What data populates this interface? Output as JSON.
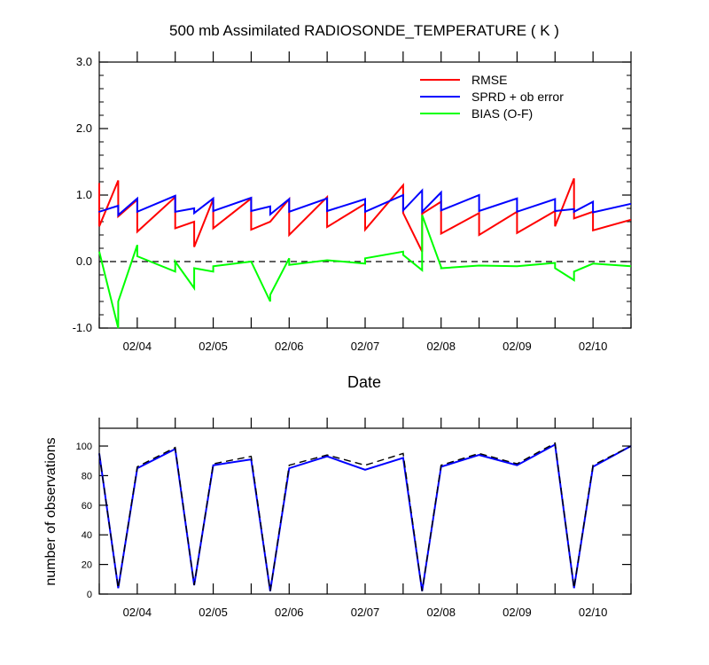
{
  "chart_data": [
    {
      "type": "line",
      "title": "500 mb Assimilated RADIOSONDE_TEMPERATURE ( K )",
      "xlabel": "Date",
      "ylabel": "",
      "ylim": [
        -1.0,
        3.0
      ],
      "y_ticks": [
        "-1.0",
        "0.0",
        "1.0",
        "2.0",
        "3.0"
      ],
      "x_ticks": [
        "02/04",
        "02/05",
        "02/06",
        "02/07",
        "02/08",
        "02/09",
        "02/10"
      ],
      "xlim": [
        3.5,
        10.5
      ],
      "zero_line": true,
      "legend_position": "top-right",
      "series": [
        {
          "name": "RMSE",
          "color": "#ff0000",
          "x": [
            3.5,
            3.5,
            3.75,
            3.75,
            4.0,
            4.0,
            4.5,
            4.5,
            4.75,
            4.75,
            5.0,
            5.0,
            5.5,
            5.5,
            5.75,
            5.75,
            6.0,
            6.0,
            6.5,
            6.5,
            7.0,
            7.0,
            7.5,
            7.5,
            7.75,
            7.75,
            8.0,
            8.0,
            8.5,
            8.5,
            9.0,
            9.0,
            9.5,
            9.5,
            9.75,
            9.75,
            10.0,
            10.0,
            10.5
          ],
          "y": [
            1.18,
            0.53,
            1.22,
            0.68,
            0.93,
            0.45,
            0.97,
            0.5,
            0.6,
            0.22,
            0.94,
            0.5,
            0.95,
            0.48,
            0.6,
            0.6,
            0.94,
            0.4,
            0.97,
            0.52,
            0.87,
            0.48,
            1.15,
            0.73,
            0.15,
            0.72,
            0.9,
            0.42,
            0.73,
            0.4,
            0.75,
            0.43,
            0.76,
            0.53,
            1.25,
            0.65,
            0.75,
            0.47,
            0.63
          ]
        },
        {
          "name": "SPRD + ob error",
          "color": "#0000ff",
          "x": [
            3.5,
            3.5,
            3.75,
            3.75,
            4.0,
            4.0,
            4.5,
            4.5,
            4.75,
            4.75,
            5.0,
            5.0,
            5.5,
            5.5,
            5.75,
            5.75,
            6.0,
            6.0,
            6.5,
            6.5,
            7.0,
            7.0,
            7.5,
            7.5,
            7.75,
            7.75,
            8.0,
            8.0,
            8.5,
            8.5,
            9.0,
            9.0,
            9.5,
            9.5,
            9.75,
            9.75,
            10.0,
            10.0,
            10.5
          ],
          "y": [
            0.74,
            0.75,
            0.84,
            0.7,
            0.95,
            0.75,
            0.99,
            0.75,
            0.8,
            0.73,
            0.95,
            0.76,
            0.96,
            0.76,
            0.83,
            0.71,
            0.94,
            0.75,
            0.95,
            0.76,
            0.94,
            0.75,
            1.0,
            0.77,
            1.07,
            0.75,
            1.04,
            0.77,
            1.0,
            0.76,
            0.95,
            0.75,
            0.94,
            0.76,
            0.79,
            0.75,
            0.9,
            0.74,
            0.87
          ]
        },
        {
          "name": "BIAS (O-F)",
          "color": "#00ff00",
          "x": [
            3.5,
            3.75,
            3.75,
            4.0,
            4.0,
            4.5,
            4.5,
            4.75,
            4.75,
            5.0,
            5.0,
            5.5,
            5.5,
            5.75,
            5.75,
            6.0,
            6.0,
            6.5,
            6.5,
            7.0,
            7.0,
            7.5,
            7.5,
            7.75,
            7.75,
            8.0,
            8.0,
            8.5,
            8.5,
            9.0,
            9.0,
            9.5,
            9.5,
            9.75,
            9.75,
            10.0,
            10.0,
            10.5
          ],
          "y": [
            0.15,
            -1.0,
            -0.6,
            0.25,
            0.08,
            -0.15,
            0.0,
            -0.4,
            -0.1,
            -0.15,
            -0.07,
            0.0,
            0.0,
            -0.6,
            -0.5,
            0.05,
            -0.05,
            0.02,
            0.02,
            -0.03,
            0.05,
            0.15,
            0.1,
            -0.13,
            0.7,
            -0.08,
            -0.1,
            -0.06,
            -0.06,
            -0.07,
            -0.07,
            -0.02,
            -0.1,
            -0.28,
            -0.15,
            -0.03,
            -0.03,
            -0.07
          ]
        }
      ]
    },
    {
      "type": "line",
      "title": "",
      "xlabel": "",
      "ylabel": "number of observations",
      "ylim": [
        0,
        112
      ],
      "y_ticks": [
        "0",
        "20",
        "40",
        "60",
        "80",
        "100"
      ],
      "x_ticks": [
        "02/04",
        "02/05",
        "02/06",
        "02/07",
        "02/08",
        "02/09",
        "02/10"
      ],
      "xlim": [
        3.5,
        10.5
      ],
      "series": [
        {
          "color": "#0000ff",
          "style": "solid",
          "x": [
            3.5,
            3.75,
            4.0,
            4.5,
            4.75,
            5.0,
            5.5,
            5.75,
            6.0,
            6.5,
            7.0,
            7.5,
            7.75,
            8.0,
            8.5,
            9.0,
            9.5,
            9.75,
            10.0,
            10.5
          ],
          "y": [
            95,
            4,
            85,
            98,
            6,
            87,
            91,
            2,
            85,
            93,
            84,
            92,
            2,
            86,
            94,
            87,
            101,
            4,
            86,
            100
          ]
        },
        {
          "color": "#000000",
          "style": "dashed",
          "x": [
            3.5,
            3.75,
            4.0,
            4.5,
            4.75,
            5.0,
            5.5,
            5.75,
            6.0,
            6.5,
            7.0,
            7.5,
            7.75,
            8.0,
            8.5,
            9.0,
            9.5,
            9.75,
            10.0,
            10.5
          ],
          "y": [
            95,
            4,
            86,
            99,
            6,
            88,
            93,
            2,
            87,
            94,
            87,
            95,
            2,
            87,
            95,
            88,
            102,
            4,
            87,
            100
          ]
        }
      ]
    }
  ]
}
